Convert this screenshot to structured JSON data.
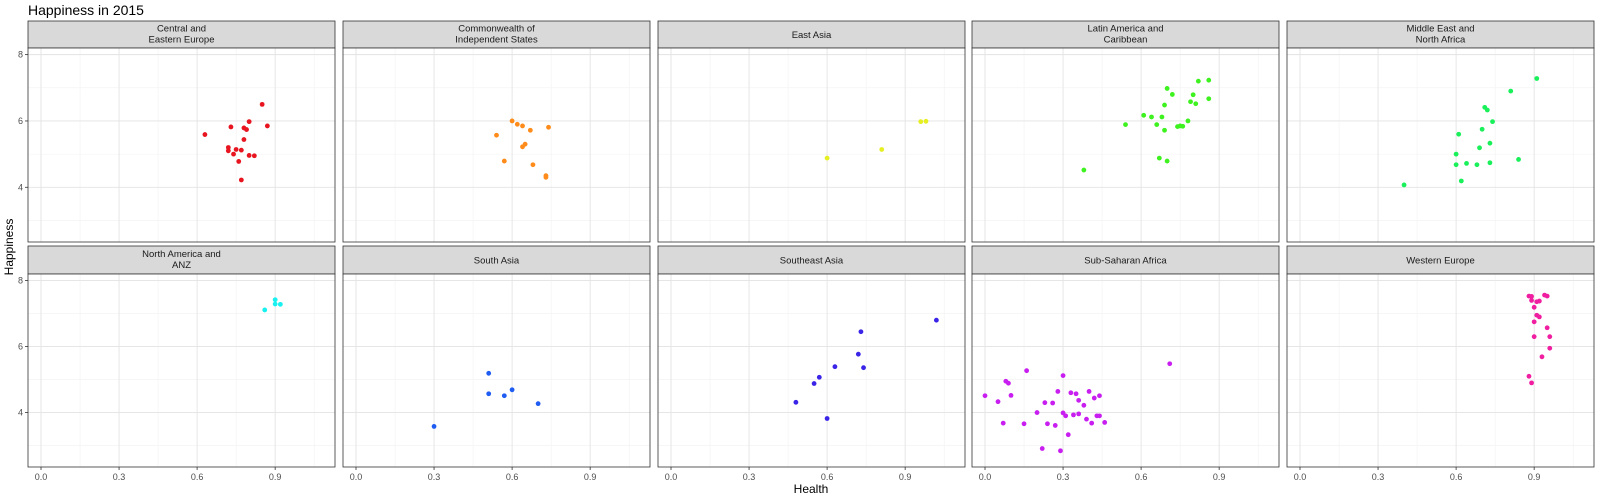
{
  "chart_data": {
    "type": "scatter",
    "title": "Happiness in 2015",
    "xlabel": "Health",
    "ylabel": "Happiness",
    "xlim": [
      -0.05,
      1.13
    ],
    "ylim": [
      2.35,
      8.2
    ],
    "x_ticks": [
      0.0,
      0.3,
      0.6,
      0.9
    ],
    "x_tick_labels": [
      "0.0",
      "0.3",
      "0.6",
      "0.9"
    ],
    "y_ticks": [
      4,
      6,
      8
    ],
    "y_tick_labels": [
      "4",
      "6",
      "8"
    ],
    "grid": true,
    "layout": "facet-grid 2 rows x 5 columns",
    "panels": [
      {
        "region": "Central and\nEastern Europe",
        "color": "#e8141f",
        "points": [
          [
            0.63,
            5.59
          ],
          [
            0.73,
            5.82
          ],
          [
            0.72,
            5.2
          ],
          [
            0.72,
            5.1
          ],
          [
            0.74,
            5.0
          ],
          [
            0.75,
            5.14
          ],
          [
            0.76,
            4.78
          ],
          [
            0.77,
            4.22
          ],
          [
            0.77,
            5.12
          ],
          [
            0.78,
            5.44
          ],
          [
            0.78,
            5.79
          ],
          [
            0.79,
            5.74
          ],
          [
            0.8,
            5.98
          ],
          [
            0.8,
            4.96
          ],
          [
            0.82,
            4.95
          ],
          [
            0.85,
            6.5
          ],
          [
            0.87,
            5.85
          ]
        ]
      },
      {
        "region": "Commonwealth of\nIndependent States",
        "color": "#ff8c1a",
        "points": [
          [
            0.54,
            5.57
          ],
          [
            0.57,
            4.79
          ],
          [
            0.6,
            6.0
          ],
          [
            0.62,
            5.9
          ],
          [
            0.64,
            5.85
          ],
          [
            0.64,
            5.22
          ],
          [
            0.65,
            5.3
          ],
          [
            0.67,
            5.72
          ],
          [
            0.68,
            4.68
          ],
          [
            0.73,
            4.35
          ],
          [
            0.73,
            4.3
          ],
          [
            0.74,
            5.81
          ]
        ]
      },
      {
        "region": "East Asia",
        "color": "#e5ef22",
        "points": [
          [
            0.6,
            4.88
          ],
          [
            0.81,
            5.14
          ],
          [
            0.96,
            5.98
          ],
          [
            0.98,
            5.99
          ]
        ]
      },
      {
        "region": "Latin America and\nCaribbean",
        "color": "#3df21e",
        "points": [
          [
            0.38,
            4.52
          ],
          [
            0.54,
            5.89
          ],
          [
            0.61,
            6.17
          ],
          [
            0.64,
            6.12
          ],
          [
            0.66,
            5.89
          ],
          [
            0.67,
            4.88
          ],
          [
            0.68,
            6.12
          ],
          [
            0.69,
            5.72
          ],
          [
            0.69,
            6.48
          ],
          [
            0.7,
            4.79
          ],
          [
            0.7,
            6.98
          ],
          [
            0.72,
            6.8
          ],
          [
            0.74,
            5.83
          ],
          [
            0.75,
            5.85
          ],
          [
            0.76,
            5.84
          ],
          [
            0.78,
            6.0
          ],
          [
            0.79,
            6.58
          ],
          [
            0.8,
            6.79
          ],
          [
            0.81,
            6.52
          ],
          [
            0.82,
            7.2
          ],
          [
            0.86,
            7.23
          ],
          [
            0.86,
            6.67
          ]
        ]
      },
      {
        "region": "Middle East and\nNorth Africa",
        "color": "#19f05a",
        "points": [
          [
            0.4,
            4.07
          ],
          [
            0.6,
            4.68
          ],
          [
            0.6,
            5.0
          ],
          [
            0.61,
            5.6
          ],
          [
            0.62,
            4.19
          ],
          [
            0.64,
            4.72
          ],
          [
            0.68,
            4.68
          ],
          [
            0.69,
            5.19
          ],
          [
            0.7,
            5.75
          ],
          [
            0.71,
            6.41
          ],
          [
            0.72,
            6.33
          ],
          [
            0.73,
            5.33
          ],
          [
            0.73,
            4.74
          ],
          [
            0.74,
            5.98
          ],
          [
            0.81,
            6.9
          ],
          [
            0.84,
            4.84
          ],
          [
            0.91,
            7.28
          ]
        ]
      },
      {
        "region": "North America and\nANZ",
        "color": "#19f0f0",
        "points": [
          [
            0.86,
            7.11
          ],
          [
            0.9,
            7.42
          ],
          [
            0.9,
            7.29
          ],
          [
            0.92,
            7.28
          ]
        ]
      },
      {
        "region": "South Asia",
        "color": "#1f5cf2",
        "points": [
          [
            0.3,
            3.58
          ],
          [
            0.51,
            5.19
          ],
          [
            0.51,
            4.57
          ],
          [
            0.57,
            4.51
          ],
          [
            0.6,
            4.69
          ],
          [
            0.7,
            4.27
          ]
        ]
      },
      {
        "region": "Southeast Asia",
        "color": "#3a24e8",
        "points": [
          [
            0.48,
            4.31
          ],
          [
            0.55,
            4.88
          ],
          [
            0.57,
            5.07
          ],
          [
            0.6,
            3.82
          ],
          [
            0.63,
            5.39
          ],
          [
            0.72,
            5.77
          ],
          [
            0.73,
            6.45
          ],
          [
            0.74,
            5.36
          ],
          [
            1.02,
            6.8
          ]
        ]
      },
      {
        "region": "Sub-Saharan Africa",
        "color": "#c81ef0",
        "points": [
          [
            0.0,
            4.51
          ],
          [
            0.05,
            4.33
          ],
          [
            0.07,
            3.68
          ],
          [
            0.08,
            4.95
          ],
          [
            0.09,
            4.89
          ],
          [
            0.1,
            4.52
          ],
          [
            0.15,
            3.66
          ],
          [
            0.16,
            5.27
          ],
          [
            0.2,
            4.0
          ],
          [
            0.22,
            2.91
          ],
          [
            0.23,
            4.3
          ],
          [
            0.24,
            3.66
          ],
          [
            0.26,
            4.29
          ],
          [
            0.27,
            3.61
          ],
          [
            0.28,
            4.64
          ],
          [
            0.29,
            2.84
          ],
          [
            0.3,
            5.12
          ],
          [
            0.3,
            3.99
          ],
          [
            0.31,
            3.9
          ],
          [
            0.32,
            3.33
          ],
          [
            0.33,
            4.6
          ],
          [
            0.34,
            3.93
          ],
          [
            0.35,
            4.57
          ],
          [
            0.36,
            3.96
          ],
          [
            0.36,
            4.37
          ],
          [
            0.38,
            4.22
          ],
          [
            0.39,
            3.8
          ],
          [
            0.4,
            4.64
          ],
          [
            0.41,
            3.68
          ],
          [
            0.42,
            4.44
          ],
          [
            0.43,
            3.9
          ],
          [
            0.44,
            4.51
          ],
          [
            0.44,
            3.9
          ],
          [
            0.46,
            3.7
          ],
          [
            0.71,
            5.48
          ]
        ]
      },
      {
        "region": "Western Europe",
        "color": "#f01ea0",
        "points": [
          [
            0.88,
            7.53
          ],
          [
            0.88,
            5.1
          ],
          [
            0.89,
            4.9
          ],
          [
            0.89,
            7.52
          ],
          [
            0.89,
            7.4
          ],
          [
            0.9,
            6.3
          ],
          [
            0.9,
            6.75
          ],
          [
            0.9,
            7.19
          ],
          [
            0.91,
            7.36
          ],
          [
            0.91,
            6.95
          ],
          [
            0.92,
            7.38
          ],
          [
            0.92,
            6.9
          ],
          [
            0.93,
            5.69
          ],
          [
            0.94,
            7.56
          ],
          [
            0.95,
            7.53
          ],
          [
            0.95,
            6.57
          ],
          [
            0.96,
            6.3
          ],
          [
            0.96,
            5.95
          ]
        ]
      }
    ]
  }
}
